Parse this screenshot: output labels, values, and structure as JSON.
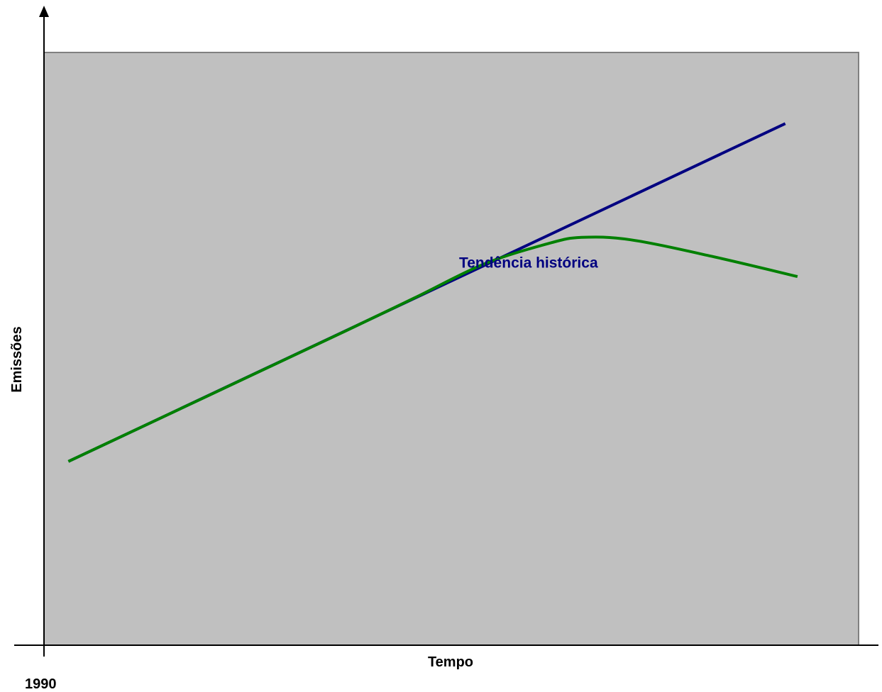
{
  "chart_data": {
    "type": "line",
    "xlabel": "Tempo",
    "ylabel": "Emissões",
    "x_start_label": "1990",
    "xlim": [
      0,
      100
    ],
    "ylim": [
      0,
      100
    ],
    "grid": false,
    "plot_background": "#c0c0c0",
    "series": [
      {
        "name": "Tendência histórica",
        "color": "#000080",
        "label_anchor_x": 52,
        "points": [
          {
            "x": 3,
            "y": 31
          },
          {
            "x": 91,
            "y": 88
          }
        ]
      },
      {
        "color": "#008000",
        "points": [
          {
            "x": 3,
            "y": 31
          },
          {
            "x": 20,
            "y": 42
          },
          {
            "x": 37,
            "y": 53
          },
          {
            "x": 45.5,
            "y": 58.6
          },
          {
            "x": 54,
            "y": 64.3
          },
          {
            "x": 62,
            "y": 67.8
          },
          {
            "x": 66,
            "y": 68.8
          },
          {
            "x": 72,
            "y": 68.4
          },
          {
            "x": 82,
            "y": 65.6
          },
          {
            "x": 92.5,
            "y": 62.2
          }
        ]
      }
    ]
  }
}
